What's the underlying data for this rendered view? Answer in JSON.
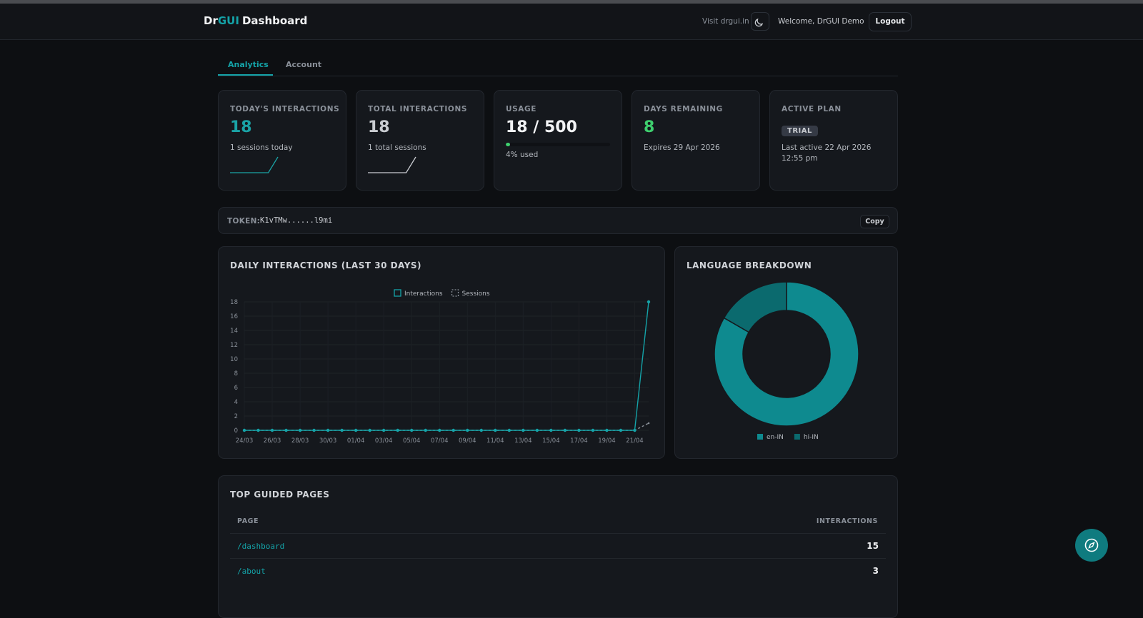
{
  "header": {
    "brand_prefix": "Dr",
    "brand_highlight": "GUI",
    "brand_suffix": "Dashboard",
    "visit": "Visit drgui.in",
    "welcome": "Welcome, DrGUI Demo",
    "logout": "Logout"
  },
  "tabs": [
    "Analytics",
    "Account"
  ],
  "stats": [
    {
      "label": "TODAY'S INTERACTIONS",
      "value": 18,
      "sub": "1 sessions today",
      "spark": [
        0,
        0,
        0,
        0,
        0,
        18
      ],
      "color": "#1aa3a6"
    },
    {
      "label": "TOTAL INTERACTIONS",
      "value": 18,
      "sub": "1 total sessions",
      "spark": [
        0,
        0,
        0,
        0,
        0,
        18
      ],
      "color": "#c9ccd1"
    },
    {
      "label": "USAGE",
      "value": "18 / 500",
      "sub": "4% used",
      "progress": 4,
      "color": "#3ecf6e"
    },
    {
      "label": "DAYS REMAINING",
      "value": 8,
      "sub": "Expires 29 Apr 2026",
      "color": "#3ecf6e"
    },
    {
      "label": "ACTIVE PLAN",
      "badge": "TRIAL",
      "sub": "Last active 22 Apr 2026 12:55 pm"
    }
  ],
  "token": {
    "label": "TOKEN:",
    "value": "K1vTMw......l9mi",
    "button": "Copy"
  },
  "chart_data": [
    {
      "type": "line",
      "title": "DAILY INTERACTIONS (LAST 30 DAYS)",
      "categories": [
        "24/03",
        null,
        "26/03",
        null,
        "28/03",
        null,
        "30/03",
        null,
        "01/04",
        null,
        "03/04",
        null,
        "05/04",
        null,
        "07/04",
        null,
        "09/04",
        null,
        "11/04",
        null,
        "13/04",
        null,
        "15/04",
        null,
        "17/04",
        null,
        "19/04",
        null,
        "21/04",
        null
      ],
      "series": [
        {
          "name": "Interactions",
          "color": "#14a3a8",
          "values": [
            0,
            0,
            0,
            0,
            0,
            0,
            0,
            0,
            0,
            0,
            0,
            0,
            0,
            0,
            0,
            0,
            0,
            0,
            0,
            0,
            0,
            0,
            0,
            0,
            0,
            0,
            0,
            0,
            0,
            18
          ]
        },
        {
          "name": "Sessions",
          "color": "#8a9099",
          "dashed": true,
          "values": [
            0,
            0,
            0,
            0,
            0,
            0,
            0,
            0,
            0,
            0,
            0,
            0,
            0,
            0,
            0,
            0,
            0,
            0,
            0,
            0,
            0,
            0,
            0,
            0,
            0,
            0,
            0,
            0,
            0,
            1
          ]
        }
      ],
      "ylim": [
        0,
        18
      ],
      "yticks": [
        0,
        2,
        4,
        6,
        8,
        10,
        12,
        14,
        16,
        18
      ],
      "grid": true
    },
    {
      "type": "donut",
      "title": "LANGUAGE BREAKDOWN",
      "categories": [
        "en-IN",
        "hi-IN"
      ],
      "values": [
        15,
        3
      ],
      "colors": [
        "#0e8a8f",
        "#0b6a6e"
      ]
    }
  ],
  "table": {
    "title": "TOP GUIDED PAGES",
    "columns": [
      "PAGE",
      "INTERACTIONS"
    ],
    "rows": [
      [
        "/dashboard",
        15
      ],
      [
        "/about",
        3
      ]
    ]
  }
}
